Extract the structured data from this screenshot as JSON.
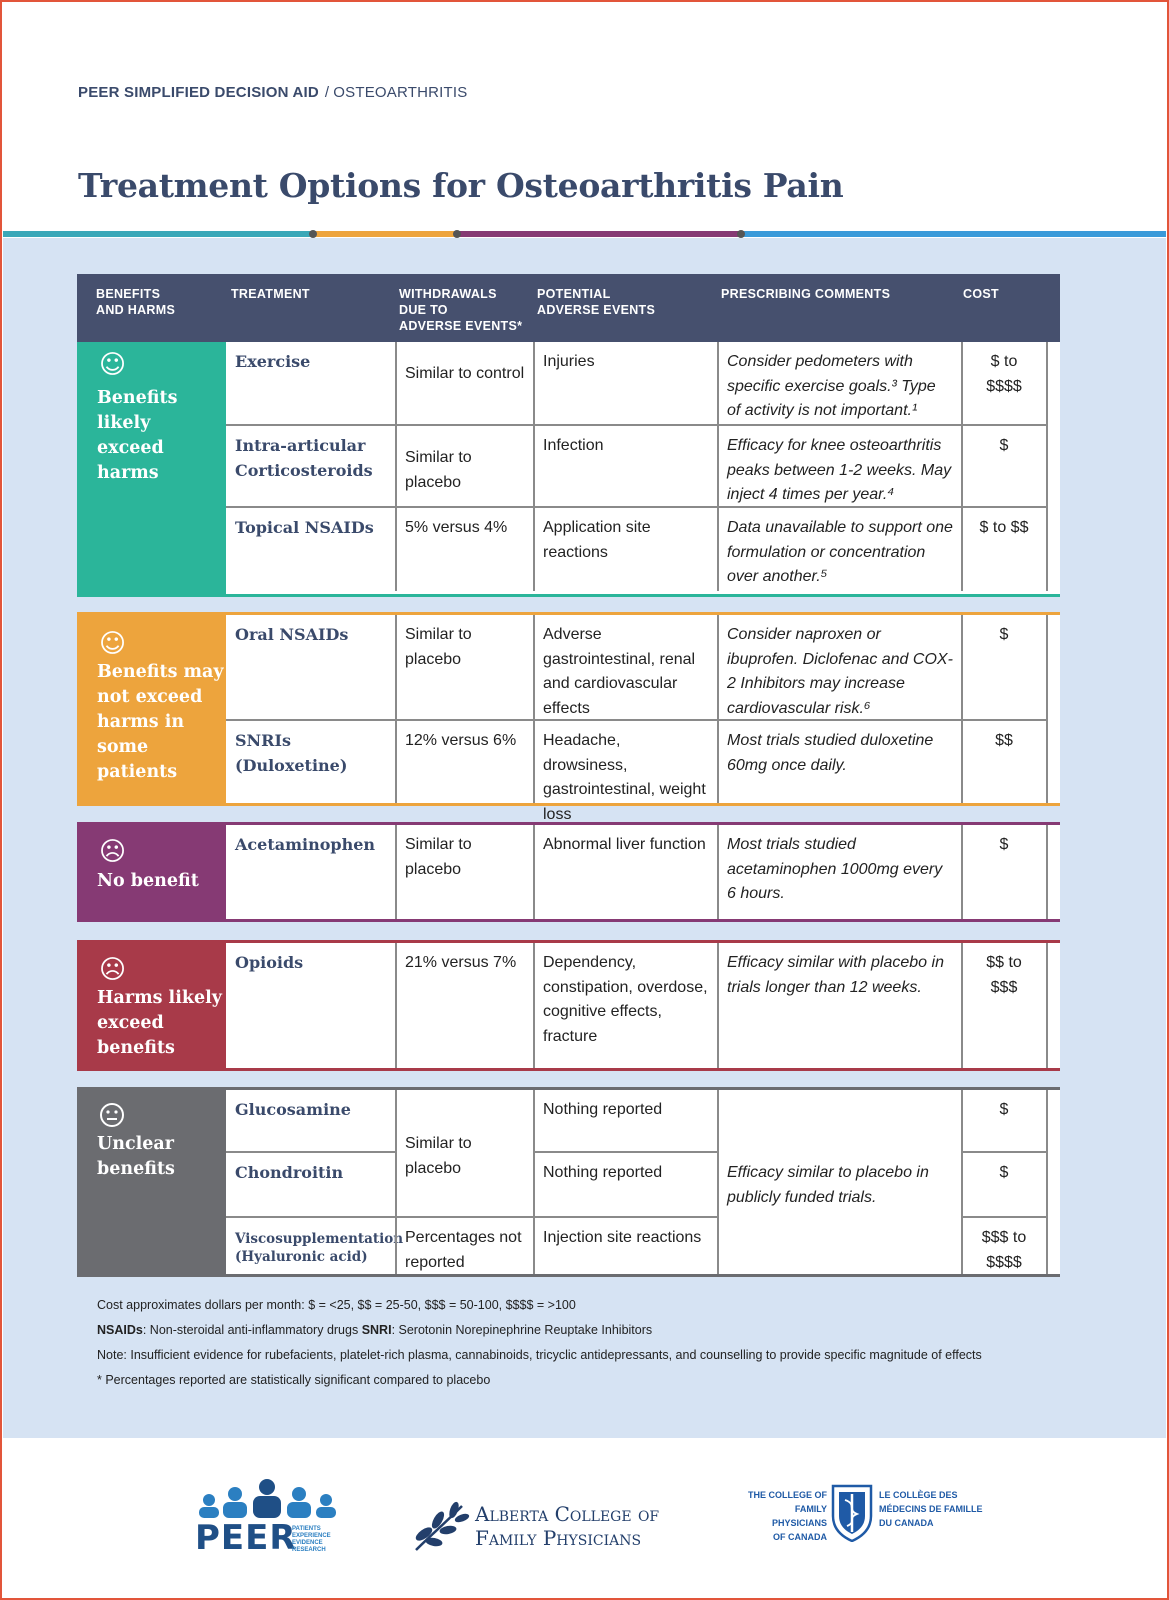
{
  "breadcrumb": {
    "primary": "PEER SIMPLIFIED DECISION AID",
    "separator": "/",
    "secondary": "OSTEOARTHRITIS"
  },
  "title": "Treatment Options for Osteoarthritis Pain",
  "colors": {
    "teal": "#2bb59a",
    "orange": "#eda43d",
    "purple": "#863a74",
    "red": "#a83a49",
    "gray": "#6b6c70",
    "navy": "#46506e",
    "blue_bg": "#d6e3f3",
    "stripe_blue": "#3a9ad9"
  },
  "table_header": {
    "benefits": [
      "BENEFITS",
      "AND HARMS"
    ],
    "treatment": "TREATMENT",
    "withdrawals": [
      "WITHDRAWALS",
      "DUE TO",
      "ADVERSE EVENTS*"
    ],
    "adverse": [
      "POTENTIAL",
      "ADVERSE EVENTS"
    ],
    "comments": "PRESCRIBING COMMENTS",
    "cost": "COST"
  },
  "groups": [
    {
      "icon": "smile-icon",
      "face": "☺",
      "label": [
        "Benefits",
        "likely",
        "exceed",
        "harms"
      ],
      "rows": [
        {
          "treatment": "Exercise",
          "withdrawals": "Similar to control",
          "adverse": "Injuries",
          "comments": "Consider pedometers with specific exercise goals.³ Type of activity is not important.¹",
          "cost": "$ to $$$$"
        },
        {
          "treatment": "Intra-articular Corticosteroids",
          "withdrawals": "Similar to placebo",
          "adverse": "Infection",
          "comments": "Efficacy for knee osteoarthritis peaks between 1-2 weeks. May inject 4 times per year.⁴",
          "cost": "$"
        },
        {
          "treatment": "Topical NSAIDs",
          "withdrawals": "5% versus 4%",
          "adverse": "Application site reactions",
          "comments": "Data unavailable to support one formulation or concentration over another.⁵",
          "cost": "$ to $$"
        }
      ]
    },
    {
      "icon": "smile-icon",
      "face": "☺",
      "label": [
        "Benefits may",
        "not exceed",
        "harms in",
        "some patients"
      ],
      "rows": [
        {
          "treatment": "Oral NSAIDs",
          "withdrawals": "Similar to placebo",
          "adverse": "Adverse gastrointestinal, renal and cardiovascular effects",
          "comments": "Consider naproxen or ibuprofen. Diclofenac and COX-2 Inhibitors may increase cardiovascular risk.⁶",
          "cost": "$"
        },
        {
          "treatment": "SNRIs (Duloxetine)",
          "withdrawals": "12% versus 6%",
          "adverse": "Headache, drowsiness, gastrointestinal, weight loss",
          "comments": "Most trials studied duloxetine 60mg once daily.",
          "cost": "$$"
        }
      ]
    },
    {
      "icon": "frown-icon",
      "face": "☹",
      "label": [
        "No benefit"
      ],
      "rows": [
        {
          "treatment": "Acetaminophen",
          "withdrawals": "Similar to placebo",
          "adverse": "Abnormal liver function",
          "comments": "Most trials studied acetaminophen 1000mg every 6 hours.",
          "cost": "$"
        }
      ]
    },
    {
      "icon": "frown-icon",
      "face": "☹",
      "label": [
        "Harms likely",
        "exceed",
        "benefits"
      ],
      "rows": [
        {
          "treatment": "Opioids",
          "withdrawals": "21% versus 7%",
          "adverse": "Dependency, constipation, overdose, cognitive effects, fracture",
          "comments": "Efficacy similar with placebo in trials longer than 12 weeks.",
          "cost": "$$ to $$$"
        }
      ]
    },
    {
      "icon": "neutral-face-icon",
      "face": "😐",
      "label": [
        "Unclear",
        "benefits"
      ],
      "rows": [
        {
          "treatment": "Glucosamine",
          "adverse": "Nothing reported",
          "cost": "$"
        },
        {
          "treatment": "Chondroitin",
          "adverse": "Nothing reported",
          "cost": "$"
        },
        {
          "treatment": "Viscosupplementation (Hyaluronic acid)",
          "withdrawals": "Percentages not reported",
          "adverse": "Injection site reactions",
          "cost": "$$$ to $$$$"
        }
      ],
      "merged_withdrawals": "Similar to placebo",
      "merged_comments": "Efficacy similar to placebo in publicly funded trials."
    }
  ],
  "footnotes": {
    "cost": "Cost approximates dollars per month: $ = <25, $$ = 25-50, $$$ = 50-100, $$$$ = >100",
    "abbr_nsaid_term": "NSAIDs",
    "abbr_nsaid_def": ": Non-steroidal anti-inflammatory drugs ",
    "abbr_snri_term": "SNRI",
    "abbr_snri_def": ": Serotonin Norepinephrine Reuptake Inhibitors",
    "note": "Note: Insufficient evidence for rubefacients, platelet-rich plasma, cannabinoids, tricyclic antidepressants, and counselling to provide specific magnitude of effects",
    "stat": "* Percentages reported are statistically significant compared to placebo"
  },
  "logos": {
    "peer": "PEER",
    "peer_sub": [
      "PATIENTS",
      "EXPERIENCE",
      "EVIDENCE",
      "RESEARCH"
    ],
    "acfp_line1": "Alberta College of",
    "acfp_line2": "Family Physicians",
    "cfpc_en": [
      "THE COLLEGE OF",
      "FAMILY PHYSICIANS",
      "OF CANADA"
    ],
    "cfpc_fr": [
      "LE COLLÈGE DES",
      "MÉDECINS DE FAMILLE",
      "DU CANADA"
    ]
  }
}
